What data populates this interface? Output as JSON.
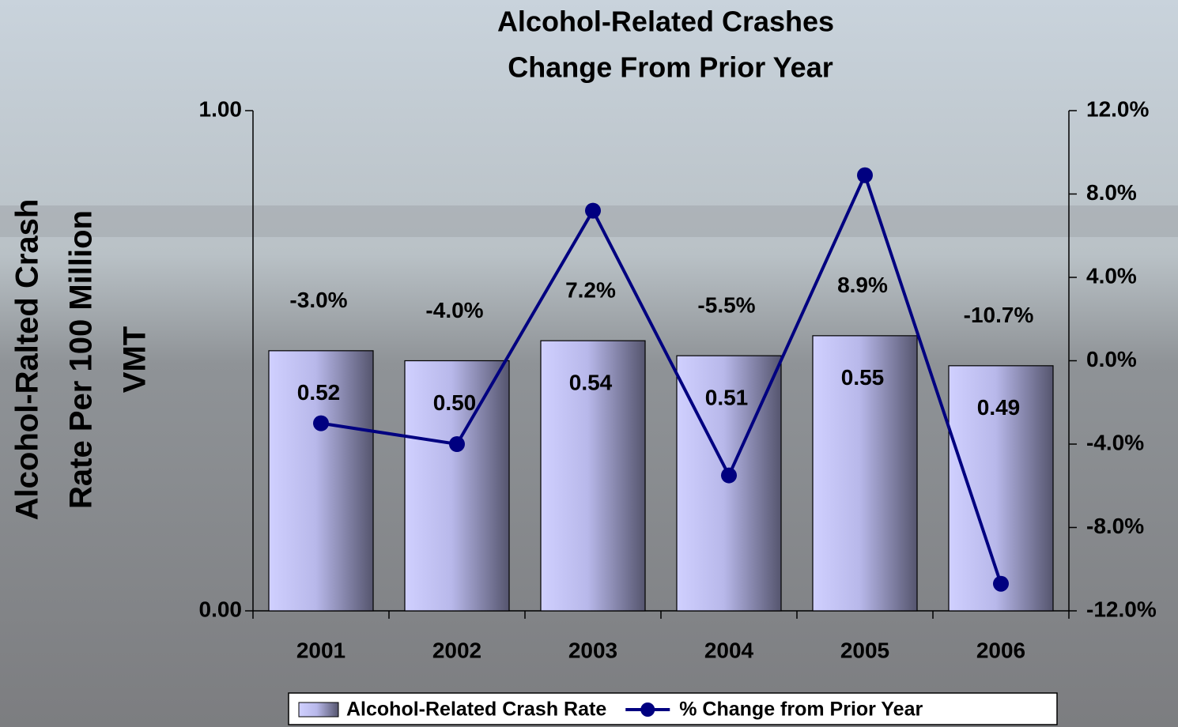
{
  "chart_data": {
    "type": "bar_line",
    "title": [
      "Alcohol-Related Crashes",
      "Change From Prior Year"
    ],
    "ylabel": [
      "Alcohol-Ralted Crash",
      "Rate Per 100 Million",
      "VMT"
    ],
    "categories": [
      "2001",
      "2002",
      "2003",
      "2004",
      "2005",
      "2006"
    ],
    "ylim": [
      0,
      1
    ],
    "yticks": [
      {
        "value": 0,
        "label": "0.00"
      },
      {
        "value": 1,
        "label": "1.00"
      }
    ],
    "y2lim": [
      -12,
      12
    ],
    "y2ticks": [
      {
        "value": -12,
        "label": "-12.0%"
      },
      {
        "value": -8,
        "label": "-8.0%"
      },
      {
        "value": -4,
        "label": "-4.0%"
      },
      {
        "value": 0,
        "label": "0.0%"
      },
      {
        "value": 4,
        "label": "4.0%"
      },
      {
        "value": 8,
        "label": "8.0%"
      },
      {
        "value": 12,
        "label": "12.0%"
      }
    ],
    "legend": "bottom",
    "series": [
      {
        "name": "Alcohol-Related Crash Rate",
        "type": "bar",
        "color": "#c8c8ff",
        "values": [
          0.52,
          0.5,
          0.54,
          0.51,
          0.55,
          0.49
        ],
        "value_labels": [
          "0.52",
          "0.50",
          "0.54",
          "0.51",
          "0.55",
          "0.49"
        ]
      },
      {
        "name": "% Change from Prior Year",
        "type": "line",
        "axis": "y2",
        "color": "#000080",
        "values": [
          -3.0,
          -4.0,
          7.2,
          -5.5,
          8.9,
          -10.7
        ],
        "value_labels": [
          "-3.0%",
          "-4.0%",
          "7.2%",
          "-5.5%",
          "8.9%",
          "-10.7%"
        ]
      }
    ]
  }
}
